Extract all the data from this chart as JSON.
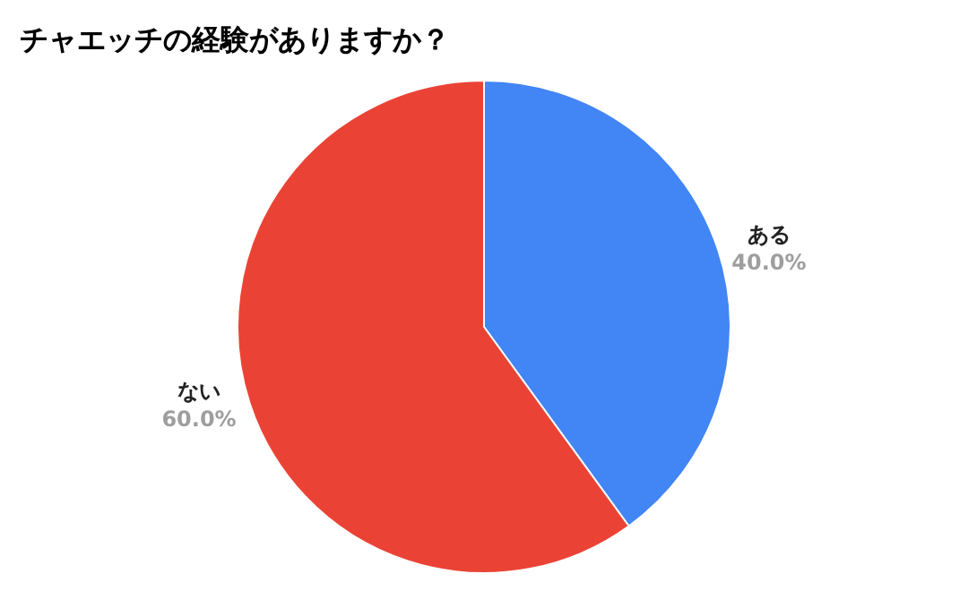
{
  "chart_data": {
    "type": "pie",
    "title": "チャエッチの経験がありますか？",
    "categories": [
      "ある",
      "ない"
    ],
    "values": [
      40,
      60
    ],
    "value_labels": [
      "40.0%",
      "60.0%"
    ],
    "colors": [
      "#4285f4",
      "#ea4335"
    ],
    "legend": false
  }
}
